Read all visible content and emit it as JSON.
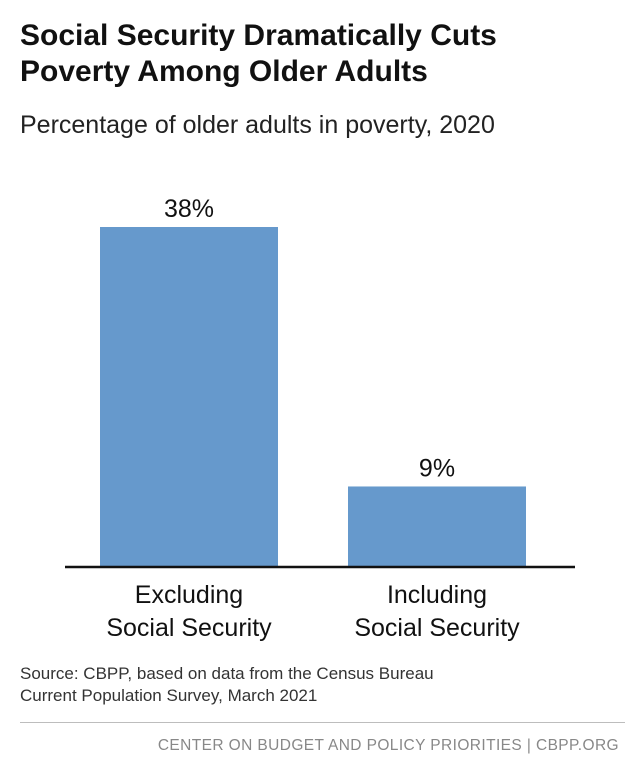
{
  "title_lines": [
    "Social Security Dramatically Cuts",
    "Poverty Among Older Adults"
  ],
  "subtitle": "Percentage of older adults in poverty, 2020",
  "chart_data": {
    "type": "bar",
    "categories": [
      [
        "Excluding",
        "Social Security"
      ],
      [
        "Including",
        "Social Security"
      ]
    ],
    "values": [
      38,
      9
    ],
    "data_labels": [
      "38%",
      "9%"
    ],
    "unit": "%",
    "ylim": [
      0,
      40
    ],
    "grid": false,
    "legend": "none",
    "bar_color": "#6699cc",
    "axis_color": "#111111"
  },
  "source_lines": [
    "Source: CBPP, based on data from the Census Bureau",
    "Current Population Survey, March 2021"
  ],
  "footer": "CENTER ON BUDGET AND POLICY PRIORITIES | CBPP.ORG"
}
